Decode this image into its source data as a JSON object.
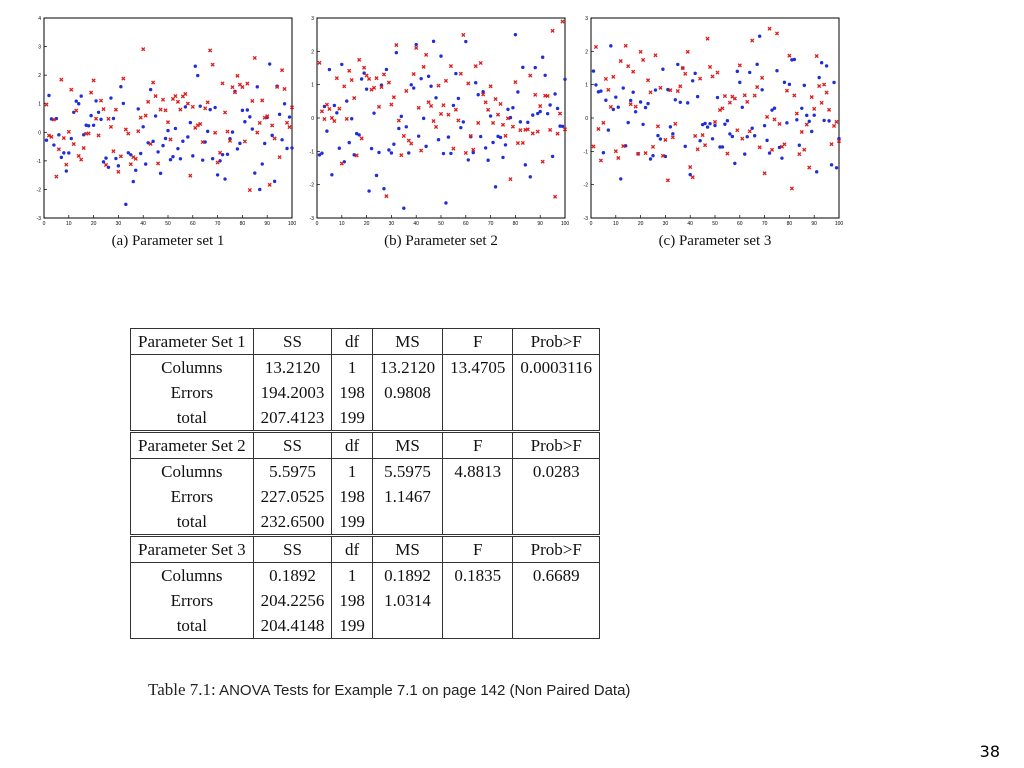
{
  "chart_data": [
    {
      "type": "scatter",
      "caption": "(a) Parameter set 1",
      "xlim": [
        0,
        100
      ],
      "ylim": [
        -3,
        4
      ],
      "xticks": [
        0,
        10,
        20,
        30,
        40,
        50,
        60,
        70,
        80,
        90,
        100
      ],
      "yticks": [
        -3,
        -2,
        -1,
        0,
        1,
        2,
        3,
        4
      ],
      "series": [
        {
          "color": "#1f2fd8",
          "marker": "dot",
          "seed": 11
        },
        {
          "color": "#e01b1b",
          "marker": "cross",
          "seed": 17
        }
      ]
    },
    {
      "type": "scatter",
      "caption": "(b) Parameter set 2",
      "xlim": [
        0,
        100
      ],
      "ylim": [
        -3,
        3
      ],
      "xticks": [
        0,
        10,
        20,
        30,
        40,
        50,
        60,
        70,
        80,
        90,
        100
      ],
      "yticks": [
        -3,
        -2,
        -1,
        0,
        1,
        2,
        3
      ],
      "series": [
        {
          "color": "#1f2fd8",
          "marker": "dot",
          "seed": 23
        },
        {
          "color": "#e01b1b",
          "marker": "cross",
          "seed": 29
        }
      ]
    },
    {
      "type": "scatter",
      "caption": "(c) Parameter set 3",
      "xlim": [
        0,
        100
      ],
      "ylim": [
        -3,
        3
      ],
      "xticks": [
        0,
        10,
        20,
        30,
        40,
        50,
        60,
        70,
        80,
        90,
        100
      ],
      "yticks": [
        -3,
        -2,
        -1,
        0,
        1,
        2,
        3
      ],
      "series": [
        {
          "color": "#1f2fd8",
          "marker": "dot",
          "seed": 31
        },
        {
          "color": "#e01b1b",
          "marker": "cross",
          "seed": 37
        }
      ]
    }
  ],
  "table": {
    "blocks": [
      {
        "header": [
          "Parameter Set 1",
          "SS",
          "df",
          "MS",
          "F",
          "Prob>F"
        ],
        "rows": [
          [
            "Columns",
            "13.2120",
            "1",
            "13.2120",
            "13.4705",
            "0.0003116"
          ],
          [
            "Errors",
            "194.2003",
            "198",
            "0.9808",
            "",
            ""
          ],
          [
            "total",
            "207.4123",
            "199",
            "",
            "",
            ""
          ]
        ]
      },
      {
        "header": [
          "Parameter Set 2",
          "SS",
          "df",
          "MS",
          "F",
          "Prob>F"
        ],
        "rows": [
          [
            "Columns",
            "5.5975",
            "1",
            "5.5975",
            "4.8813",
            "0.0283"
          ],
          [
            "Errors",
            "227.0525",
            "198",
            "1.1467",
            "",
            ""
          ],
          [
            "total",
            "232.6500",
            "199",
            "",
            "",
            ""
          ]
        ]
      },
      {
        "header": [
          "Parameter Set 3",
          "SS",
          "df",
          "MS",
          "F",
          "Prob>F"
        ],
        "rows": [
          [
            "Columns",
            "0.1892",
            "1",
            "0.1892",
            "0.1835",
            "0.6689"
          ],
          [
            "Errors",
            "204.2256",
            "198",
            "1.0314",
            "",
            ""
          ],
          [
            "total",
            "204.4148",
            "199",
            "",
            "",
            ""
          ]
        ]
      }
    ]
  },
  "table_caption": {
    "label": "Table 7.1:",
    "text": " ANOVA Tests for Example 7.1 on page 142 (Non Paired Data)"
  },
  "page_number": "38"
}
